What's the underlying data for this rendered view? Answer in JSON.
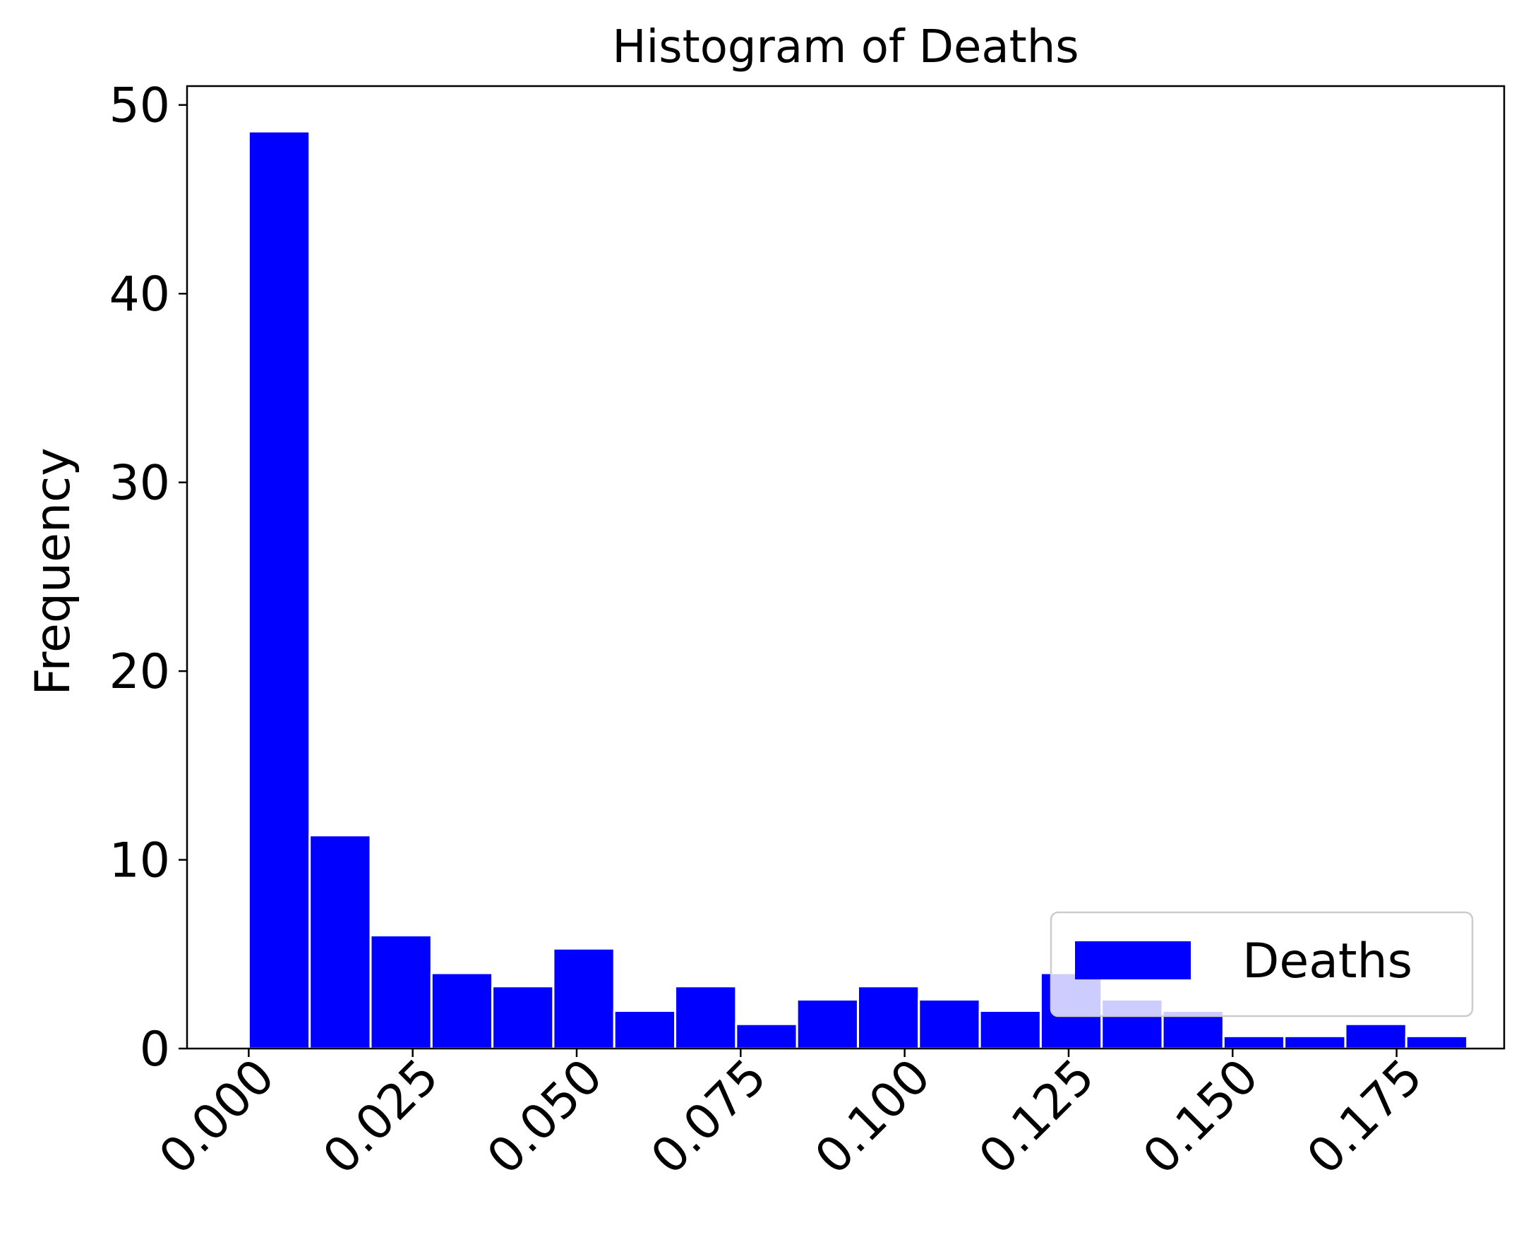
{
  "chart_data": {
    "type": "bar",
    "title": "Histogram of Deaths",
    "xlabel": "",
    "ylabel": "Frequency",
    "xlim": [
      -0.0094,
      0.1914
    ],
    "ylim": [
      0,
      51
    ],
    "x_ticks": [
      "0.000",
      "0.025",
      "0.050",
      "0.075",
      "0.100",
      "0.125",
      "0.150",
      "0.175"
    ],
    "y_ticks": [
      "0",
      "10",
      "20",
      "30",
      "40",
      "50"
    ],
    "grid": false,
    "legend_position": "lower-right",
    "series": [
      {
        "name": "Deaths",
        "color": "#0000ff",
        "bin_start": 0.0,
        "bin_width": 0.009288,
        "values": [
          48.6,
          11.3,
          6.0,
          4.0,
          3.3,
          5.3,
          2.0,
          3.3,
          1.3,
          2.6,
          3.3,
          2.6,
          2.0,
          4.0,
          2.6,
          2.0,
          0.66,
          0.66,
          1.3,
          0.66
        ]
      }
    ]
  }
}
